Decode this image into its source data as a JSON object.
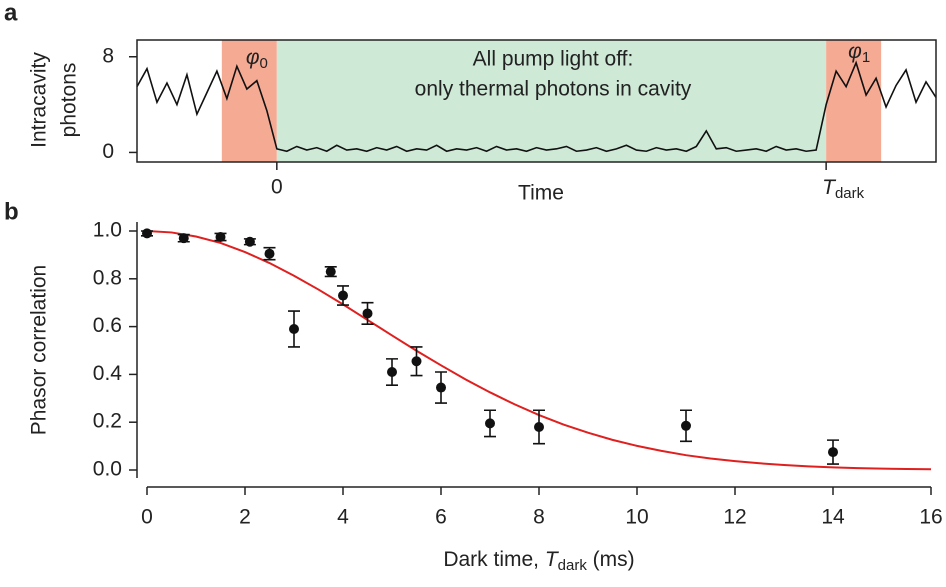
{
  "chart_data": [
    {
      "type": "line",
      "label": "a",
      "ylabel": [
        "Intracavity",
        "photons"
      ],
      "xlabel": "Time",
      "categories": [
        null,
        null,
        null,
        null,
        null,
        null,
        null,
        null,
        null,
        null,
        null,
        null,
        null,
        null,
        "0",
        null,
        null,
        null,
        null,
        null,
        null,
        null,
        null,
        null,
        null,
        null,
        null,
        null,
        null,
        null,
        null,
        null,
        null,
        null,
        null,
        null,
        null,
        null,
        null,
        null,
        null,
        null,
        null,
        null,
        null,
        null,
        null,
        null,
        null,
        null,
        null,
        null,
        null,
        null,
        null,
        null,
        null,
        null,
        null,
        null,
        null,
        null,
        null,
        null,
        null,
        null,
        null,
        null,
        null,
        "T",
        null,
        null,
        null,
        null,
        null,
        null,
        null,
        null,
        null,
        null,
        null
      ],
      "category_subscript": "dark",
      "values": [
        5.5,
        7.0,
        4.2,
        5.8,
        4.0,
        6.5,
        3.2,
        5.0,
        6.8,
        4.5,
        7.2,
        5.3,
        6.0,
        3.5,
        0.3,
        0.1,
        0.5,
        0.2,
        0.4,
        0.1,
        0.6,
        0.2,
        0.3,
        0.1,
        0.4,
        0.2,
        0.5,
        0.1,
        0.3,
        0.2,
        0.6,
        0.1,
        0.3,
        0.2,
        0.4,
        0.1,
        0.5,
        0.2,
        0.3,
        0.1,
        0.4,
        0.2,
        0.3,
        0.5,
        0.1,
        0.2,
        0.4,
        0.1,
        0.3,
        0.6,
        0.2,
        0.1,
        0.4,
        0.2,
        0.3,
        0.1,
        0.5,
        1.8,
        0.3,
        0.4,
        0.1,
        0.2,
        0.3,
        0.1,
        0.5,
        0.2,
        0.3,
        0.1,
        0.2,
        4.0,
        6.8,
        5.5,
        7.5,
        4.8,
        6.2,
        3.8,
        5.6,
        6.9,
        4.2,
        5.9,
        4.6
      ],
      "color": "#111111",
      "ylim": [
        -0.8,
        9.4
      ],
      "yticks": [
        0,
        8
      ],
      "region_colors": {
        "phase": "#f5aa94",
        "dark": "#cfe9d7"
      },
      "phase_labels": [
        {
          "symbol": "φ",
          "sub": "0"
        },
        {
          "symbol": "φ",
          "sub": "1"
        }
      ],
      "annotation": [
        "All pump light off:",
        "only thermal photons in cavity"
      ]
    },
    {
      "type": "scatter",
      "label": "b",
      "ylabel": "Phasor correlation",
      "xlabel": {
        "before": "Dark time, ",
        "T": "T",
        "sub": "dark",
        "after": " (ms)"
      },
      "xlim": [
        0,
        16
      ],
      "ylim": [
        0,
        1
      ],
      "xticks": [
        0,
        2,
        4,
        6,
        8,
        10,
        12,
        14,
        16
      ],
      "yticks": [
        {
          "value": 0,
          "label": "0.0"
        },
        {
          "value": 0.2,
          "label": "0.2"
        },
        {
          "value": 0.4,
          "label": "0.4"
        },
        {
          "value": 0.6,
          "label": "0.6"
        },
        {
          "value": 0.8,
          "label": "0.8"
        },
        {
          "value": 1,
          "label": "1.0"
        }
      ],
      "points": {
        "color": "#111111",
        "x": [
          0,
          0.75,
          1.5,
          2.1,
          2.5,
          3,
          3.75,
          4,
          4.5,
          5,
          5.5,
          6,
          7,
          8,
          11,
          14
        ],
        "values": [
          0.99,
          0.97,
          0.975,
          0.955,
          0.905,
          0.59,
          0.83,
          0.73,
          0.655,
          0.41,
          0.455,
          0.345,
          0.195,
          0.18,
          0.185,
          0.075
        ],
        "errors": [
          0.01,
          0.015,
          0.015,
          0.012,
          0.025,
          0.075,
          0.02,
          0.04,
          0.045,
          0.055,
          0.06,
          0.065,
          0.055,
          0.07,
          0.065,
          0.05
        ]
      },
      "fit": {
        "color": "#e01f1f",
        "x": [
          0,
          0.5,
          1,
          1.5,
          2,
          2.5,
          3,
          3.5,
          4,
          4.5,
          5,
          5.5,
          6,
          6.5,
          7,
          7.5,
          8,
          8.5,
          9,
          9.5,
          10,
          10.5,
          11,
          11.5,
          12,
          12.5,
          13,
          13.5,
          14,
          14.5,
          15,
          15.5,
          16
        ],
        "values": [
          1,
          0.994,
          0.977,
          0.95,
          0.912,
          0.866,
          0.813,
          0.755,
          0.693,
          0.628,
          0.563,
          0.499,
          0.438,
          0.379,
          0.325,
          0.275,
          0.23,
          0.19,
          0.156,
          0.126,
          0.101,
          0.08,
          0.062,
          0.048,
          0.037,
          0.028,
          0.021,
          0.015,
          0.011,
          0.008,
          0.006,
          0.004,
          0.003
        ]
      }
    }
  ]
}
